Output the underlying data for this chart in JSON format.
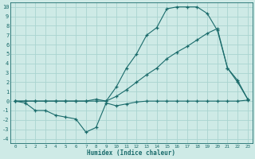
{
  "xlabel": "Humidex (Indice chaleur)",
  "background_color": "#ceeae6",
  "grid_color": "#aad4d0",
  "line_color": "#1a6b6b",
  "xlim": [
    -0.5,
    23.5
  ],
  "ylim": [
    -4.5,
    10.5
  ],
  "xticks": [
    0,
    1,
    2,
    3,
    4,
    5,
    6,
    7,
    8,
    9,
    10,
    11,
    12,
    13,
    14,
    15,
    16,
    17,
    18,
    19,
    20,
    21,
    22,
    23
  ],
  "yticks": [
    -4,
    -3,
    -2,
    -1,
    0,
    1,
    2,
    3,
    4,
    5,
    6,
    7,
    8,
    9,
    10
  ],
  "series1_x": [
    0,
    1,
    2,
    3,
    4,
    5,
    6,
    7,
    8,
    9,
    10,
    11,
    12,
    13,
    14,
    15,
    16,
    17,
    18,
    19,
    20,
    21,
    22,
    23
  ],
  "series1_y": [
    0,
    -0.2,
    -1.0,
    -1.0,
    -1.5,
    -1.7,
    -1.9,
    -3.3,
    -2.8,
    -0.2,
    -0.5,
    -0.3,
    -0.1,
    0,
    0,
    0,
    0,
    0,
    0,
    0,
    0,
    0,
    0,
    0.1
  ],
  "series2_x": [
    0,
    1,
    2,
    3,
    4,
    5,
    6,
    7,
    8,
    9,
    10,
    11,
    12,
    13,
    14,
    15,
    16,
    17,
    18,
    19,
    20,
    21,
    22,
    23
  ],
  "series2_y": [
    0,
    0,
    0,
    0,
    0,
    0,
    0,
    0,
    0,
    0,
    0.5,
    1.2,
    2.0,
    2.8,
    3.5,
    4.5,
    5.2,
    5.8,
    6.5,
    7.2,
    7.7,
    3.5,
    2.0,
    0.2
  ],
  "series3_x": [
    0,
    1,
    2,
    3,
    4,
    5,
    6,
    7,
    8,
    9,
    10,
    11,
    12,
    13,
    14,
    15,
    16,
    17,
    18,
    19,
    20,
    21,
    22,
    23
  ],
  "series3_y": [
    0,
    0,
    0,
    0,
    0,
    0,
    0,
    0,
    0.2,
    0,
    1.5,
    3.5,
    5.0,
    7.0,
    7.8,
    9.8,
    10.0,
    10.0,
    10.0,
    9.3,
    7.5,
    3.5,
    2.2,
    0.2
  ]
}
